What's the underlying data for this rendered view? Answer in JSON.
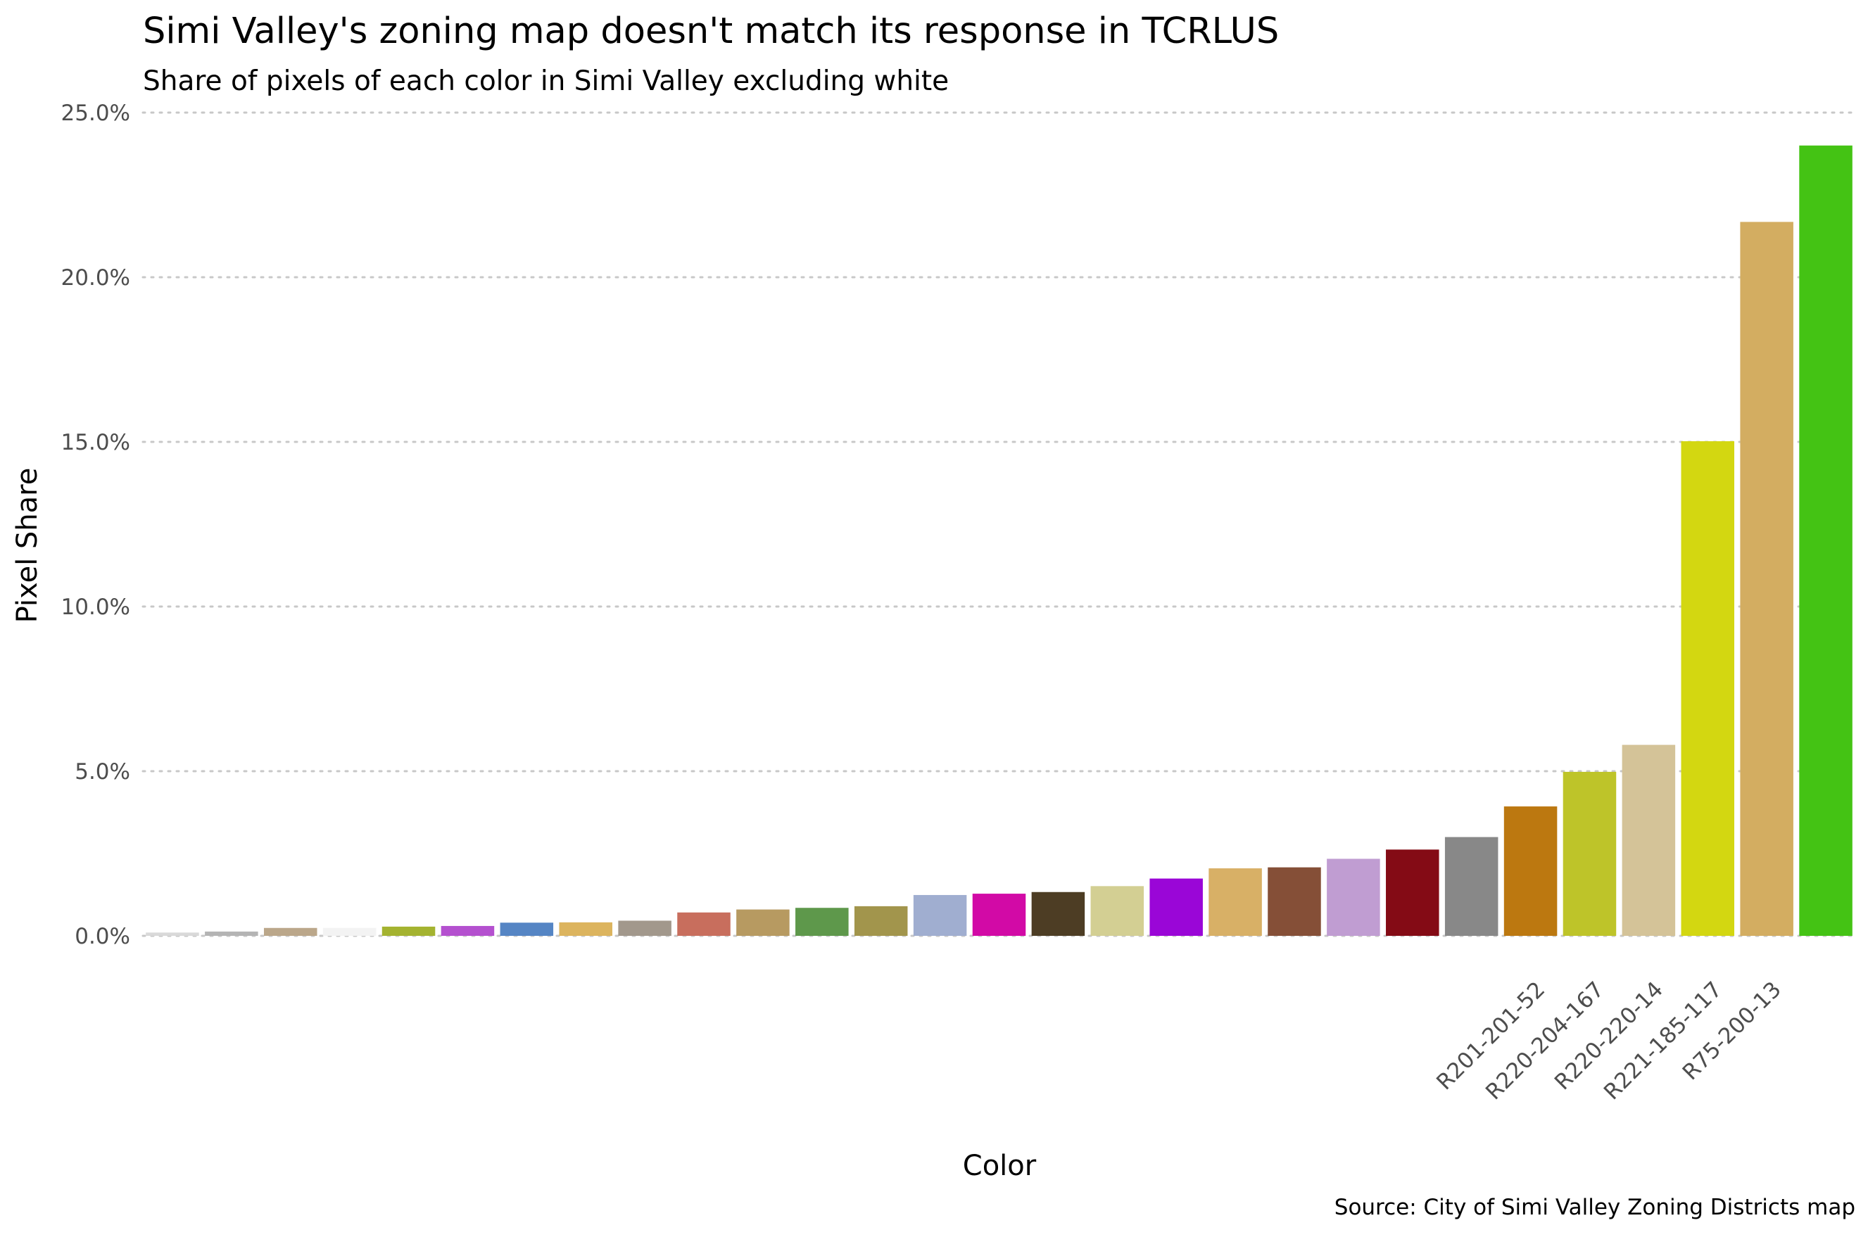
{
  "chart_data": {
    "type": "bar",
    "title": "Simi Valley's zoning map doesn't match its response in TCRLUS",
    "subtitle": "Share of pixels of each color in Simi Valley excluding white",
    "xlabel": "Color",
    "ylabel": "Pixel Share",
    "caption": "Source: City of Simi Valley Zoning Districts map",
    "ylim": [
      0,
      25
    ],
    "yticks": [
      0,
      5,
      10,
      15,
      20,
      25
    ],
    "ytick_labels": [
      "0.0%",
      "5.0%",
      "10.0%",
      "15.0%",
      "20.0%",
      "25.0%"
    ],
    "grid": true,
    "bars": [
      {
        "label": "",
        "value": 0.1,
        "color": "#d9d9d9"
      },
      {
        "label": "",
        "value": 0.13,
        "color": "#b4b4b4"
      },
      {
        "label": "",
        "value": 0.24,
        "color": "#bba78a"
      },
      {
        "label": "",
        "value": 0.24,
        "color": "#f3f3f3"
      },
      {
        "label": "",
        "value": 0.28,
        "color": "#a4b330"
      },
      {
        "label": "",
        "value": 0.3,
        "color": "#b450cf"
      },
      {
        "label": "",
        "value": 0.4,
        "color": "#5585c4"
      },
      {
        "label": "",
        "value": 0.41,
        "color": "#dcb45e"
      },
      {
        "label": "",
        "value": 0.46,
        "color": "#a2988c"
      },
      {
        "label": "",
        "value": 0.71,
        "color": "#c86e5d"
      },
      {
        "label": "",
        "value": 0.8,
        "color": "#b79a61"
      },
      {
        "label": "",
        "value": 0.85,
        "color": "#5e984b"
      },
      {
        "label": "",
        "value": 0.9,
        "color": "#a2954c"
      },
      {
        "label": "",
        "value": 1.24,
        "color": "#a0aed0"
      },
      {
        "label": "",
        "value": 1.28,
        "color": "#d20aa6"
      },
      {
        "label": "",
        "value": 1.33,
        "color": "#4d3d24"
      },
      {
        "label": "",
        "value": 1.51,
        "color": "#d3cf93"
      },
      {
        "label": "",
        "value": 1.74,
        "color": "#9a06d7"
      },
      {
        "label": "",
        "value": 2.05,
        "color": "#d8b066"
      },
      {
        "label": "",
        "value": 2.08,
        "color": "#854f37"
      },
      {
        "label": "",
        "value": 2.34,
        "color": "#c09dd2"
      },
      {
        "label": "",
        "value": 2.62,
        "color": "#840b15"
      },
      {
        "label": "",
        "value": 3.0,
        "color": "#888888"
      },
      {
        "label": "R201-201-52",
        "value": 3.93,
        "color": "#bc7810"
      },
      {
        "label": "R220-204-167",
        "value": 4.98,
        "color": "#bec429"
      },
      {
        "label": "R220-220-14",
        "value": 5.8,
        "color": "#d4c398"
      },
      {
        "label": "R221-185-117",
        "value": 15.02,
        "color": "#d3d711"
      },
      {
        "label": "R75-200-13",
        "value": 21.68,
        "color": "#d3ad61"
      },
      {
        "label": "",
        "value": 24.0,
        "color": "#44c314"
      }
    ]
  }
}
